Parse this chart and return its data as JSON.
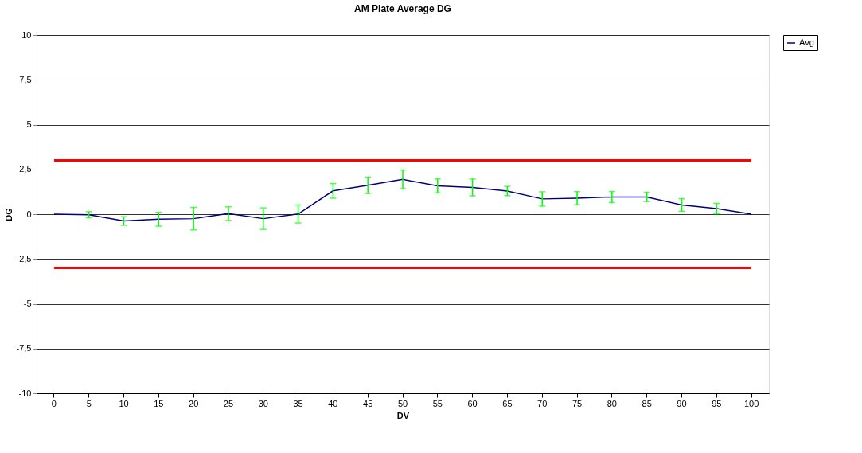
{
  "chart_data": {
    "type": "line",
    "title": "AM Plate Average DG",
    "xlabel": "DV",
    "ylabel": "DG",
    "categories": [
      "0",
      "5",
      "10",
      "15",
      "20",
      "25",
      "30",
      "35",
      "40",
      "45",
      "50",
      "55",
      "60",
      "65",
      "70",
      "75",
      "80",
      "85",
      "90",
      "95",
      "100"
    ],
    "series": [
      {
        "name": "Avg",
        "color": "#000080",
        "values": [
          0,
          -0.03,
          -0.38,
          -0.28,
          -0.25,
          0.03,
          -0.25,
          0.01,
          1.3,
          1.61,
          1.94,
          1.58,
          1.49,
          1.29,
          0.85,
          0.89,
          0.96,
          0.96,
          0.51,
          0.31,
          0
        ],
        "errors": [
          null,
          0.17,
          0.24,
          0.39,
          0.63,
          0.38,
          0.6,
          0.5,
          0.41,
          0.46,
          0.52,
          0.39,
          0.47,
          0.26,
          0.4,
          0.37,
          0.31,
          0.26,
          0.35,
          0.29,
          null
        ]
      }
    ],
    "ylim": [
      -10,
      10
    ],
    "yticks": [
      -10,
      {
        "value": -7.5,
        "label": "-7,5"
      },
      -5,
      {
        "value": -2.5,
        "label": "-2,5"
      },
      0,
      {
        "value": 2.5,
        "label": "2,5"
      },
      5,
      {
        "value": 7.5,
        "label": "7,5"
      },
      10
    ],
    "ref_lines": [
      {
        "axis": "y",
        "value": 3,
        "color": "#ff0000"
      },
      {
        "axis": "y",
        "value": -3,
        "color": "#ff0000"
      }
    ],
    "grid": "y",
    "legend": "right",
    "marker": "none",
    "line_style": "solid"
  }
}
